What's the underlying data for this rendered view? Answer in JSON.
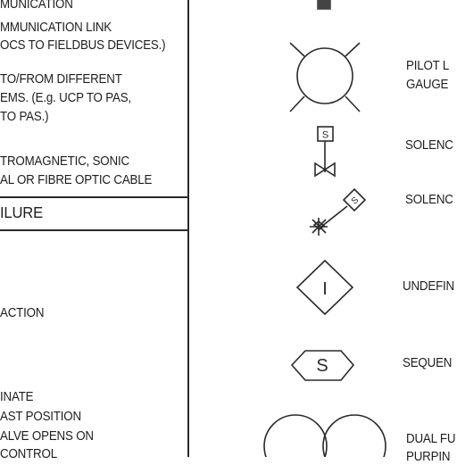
{
  "left_column": {
    "block_1": [
      "MUNICATION",
      "MMUNICATION LINK",
      "OCS TO FIELDBUS DEVICES.)"
    ],
    "block_2": [
      "TO/FROM DIFFERENT",
      "EMS. (E.g. UCP TO PAS,",
      "TO PAS.)"
    ],
    "block_3": [
      "TROMAGNETIC, SONIC",
      "AL OR FIBRE OPTIC CABLE"
    ],
    "section_header": "ILURE",
    "action": "ACTION",
    "block_4": [
      "INATE",
      "AST POSITION",
      "ALVE OPENS ON",
      "CONTROL"
    ]
  },
  "right_column": {
    "labels": {
      "pilot": [
        "PILOT L",
        "GAUGE"
      ],
      "solenoid_1": "SOLENC",
      "solenoid_2": "SOLENC",
      "undefined": "UNDEFIN",
      "sequence": "SEQUEN",
      "dual": [
        "DUAL FU",
        "PURPIN"
      ]
    },
    "symbol_letters": {
      "solenoid_box": "S",
      "solenoid_diamond": "S",
      "undefined_diamond": "I",
      "sequence_hexagon": "S"
    }
  }
}
